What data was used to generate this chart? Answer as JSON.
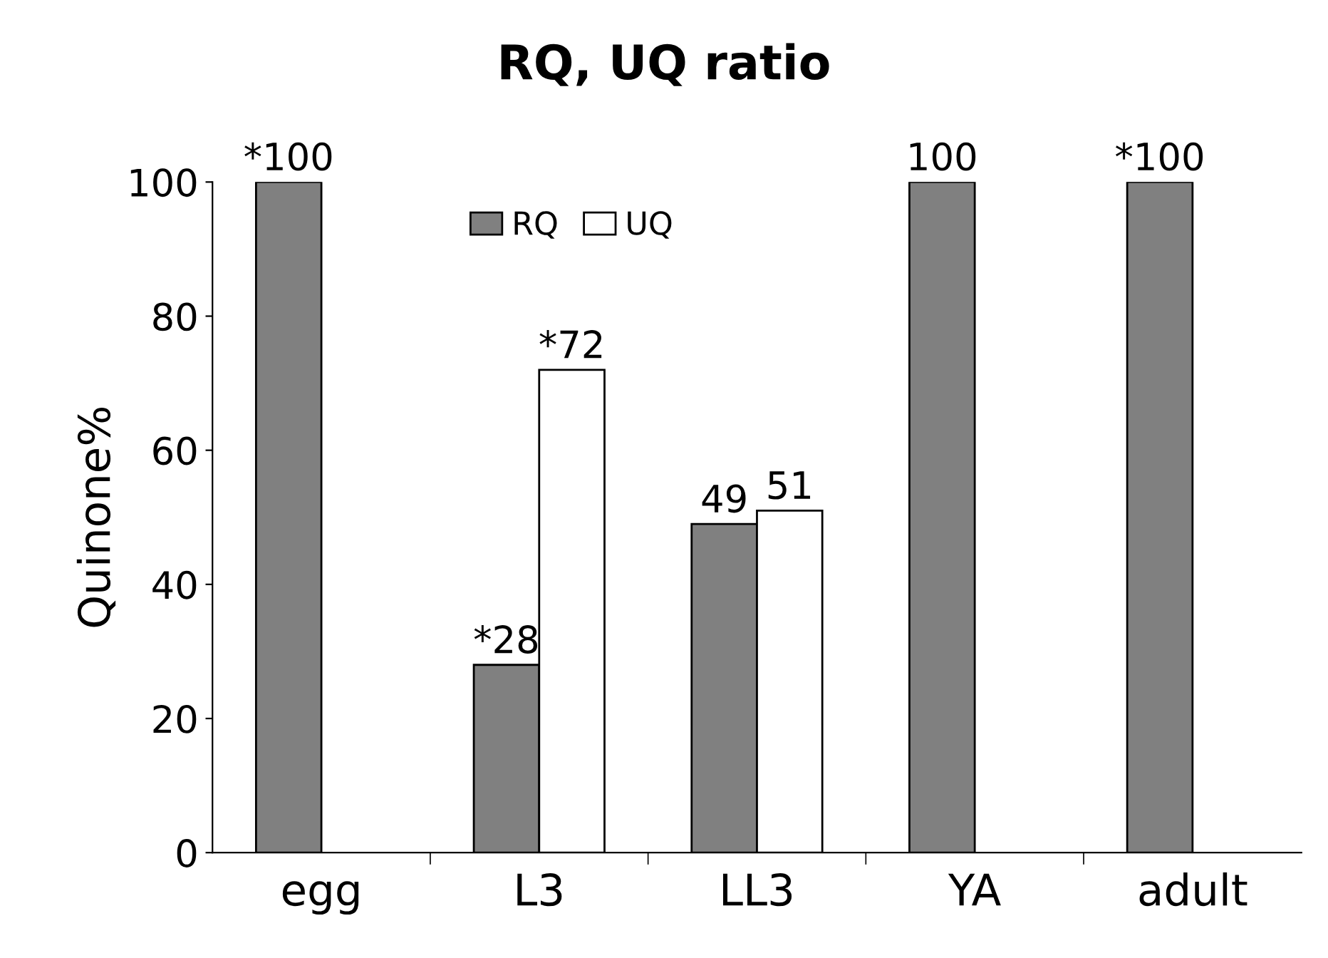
{
  "chart_data": {
    "type": "bar",
    "title": "RQ, UQ ratio",
    "ylabel": "Quinone%",
    "categories": [
      "egg",
      "L3",
      "LL3",
      "YA",
      "adult"
    ],
    "series": [
      {
        "name": "RQ",
        "color": "#808080",
        "values": [
          100,
          28,
          49,
          100,
          100
        ],
        "value_labels": [
          "*100",
          "*28",
          "49",
          "100",
          "*100"
        ]
      },
      {
        "name": "UQ",
        "color": "#ffffff",
        "values": [
          null,
          72,
          51,
          null,
          null
        ],
        "value_labels": [
          null,
          "*72",
          "51",
          null,
          null
        ]
      }
    ],
    "ylim": [
      0,
      100
    ],
    "yticks": [
      0,
      20,
      40,
      60,
      80,
      100
    ],
    "grid": false,
    "legend": "top"
  }
}
